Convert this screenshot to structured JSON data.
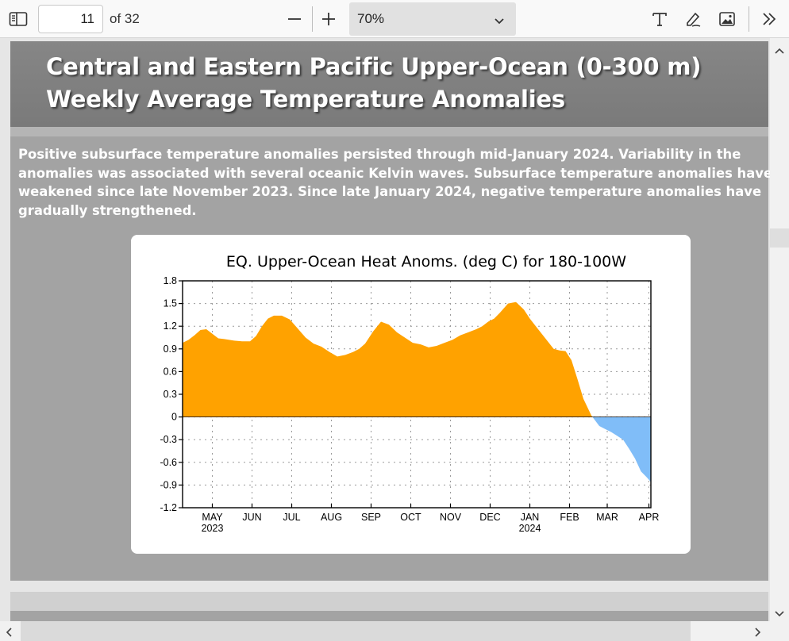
{
  "toolbar": {
    "page_current": "11",
    "page_total_label": "of 32",
    "zoom_value": "70%",
    "icons": [
      "sidebar-toggle-icon",
      "zoom-out-icon",
      "zoom-in-icon",
      "chevron-down-icon",
      "text-icon",
      "draw-icon",
      "image-icon",
      "more-tools-icon"
    ]
  },
  "slide": {
    "title_line1": "Central and Eastern Pacific Upper-Ocean (0-300 m)",
    "title_line2": "Weekly Average Temperature Anomalies",
    "description_lines": [
      "Positive subsurface temperature anomalies persisted through mid-January 2024.  Variability in the",
      "anomalies was associated with several oceanic Kelvin waves.  Subsurface temperature anomalies have",
      "weakened since late November 2023.  Since late January 2024,  negative temperature anomalies have",
      "gradually strengthened."
    ]
  },
  "colors": {
    "positive_fill": "#ffa200",
    "negative_fill": "#80bdf8",
    "slide_bg": "#a3a3a3",
    "title_band": "#7f7f7f"
  },
  "chart_data": {
    "type": "area",
    "title": "EQ. Upper-Ocean Heat Anoms. (deg C) for 180-100W",
    "xlabel": "",
    "ylabel": "",
    "ylim": [
      -1.2,
      1.8
    ],
    "yticks": [
      "1.8",
      "1.5",
      "1.2",
      "0.9",
      "0.6",
      "0.3",
      "0",
      "-0.3",
      "-0.6",
      "-0.9",
      "-1.2"
    ],
    "x_tick_labels": [
      {
        "label": "MAY",
        "sub": "2023",
        "x": 0.75
      },
      {
        "label": "JUN",
        "sub": "",
        "x": 1.75
      },
      {
        "label": "JUL",
        "sub": "",
        "x": 2.75
      },
      {
        "label": "AUG",
        "sub": "",
        "x": 3.75
      },
      {
        "label": "SEP",
        "sub": "",
        "x": 4.75
      },
      {
        "label": "OCT",
        "sub": "",
        "x": 5.75
      },
      {
        "label": "NOV",
        "sub": "",
        "x": 6.75
      },
      {
        "label": "DEC",
        "sub": "",
        "x": 7.75
      },
      {
        "label": "JAN",
        "sub": "2024",
        "x": 8.75
      },
      {
        "label": "FEB",
        "sub": "",
        "x": 9.75
      },
      {
        "label": "MAR",
        "sub": "",
        "x": 10.7
      },
      {
        "label": "APR",
        "sub": "",
        "x": 11.75
      }
    ],
    "xlim": [
      0,
      11.8
    ],
    "grid": true,
    "x_unit": "months since start of Apr 2023",
    "series": [
      {
        "x": [
          0.0,
          0.15,
          0.3,
          0.45,
          0.6,
          0.75,
          0.9,
          1.05,
          1.3,
          1.5,
          1.7,
          1.85,
          2.0,
          2.15,
          2.3,
          2.5,
          2.7,
          2.9,
          3.1,
          3.3,
          3.5,
          3.7,
          3.9,
          4.1,
          4.3,
          4.45,
          4.6,
          4.8,
          5.0,
          5.2,
          5.4,
          5.6,
          5.8,
          6.0,
          6.2,
          6.4,
          6.6,
          6.8,
          7.0,
          7.2,
          7.4,
          7.55,
          7.7,
          7.85,
          8.0,
          8.2,
          8.4,
          8.6,
          8.75,
          8.9,
          9.05,
          9.2,
          9.35,
          9.5,
          9.65,
          9.8,
          9.95,
          10.1,
          10.3,
          10.5,
          10.65,
          10.8,
          10.95,
          11.1,
          11.25,
          11.4,
          11.55,
          11.7,
          11.8
        ],
        "y": [
          0.98,
          1.02,
          1.08,
          1.15,
          1.16,
          1.1,
          1.04,
          1.03,
          1.01,
          1.0,
          1.0,
          1.07,
          1.2,
          1.3,
          1.34,
          1.34,
          1.29,
          1.17,
          1.05,
          0.97,
          0.93,
          0.86,
          0.8,
          0.82,
          0.86,
          0.9,
          0.97,
          1.13,
          1.26,
          1.22,
          1.12,
          1.05,
          0.98,
          0.96,
          0.92,
          0.94,
          0.98,
          1.02,
          1.08,
          1.12,
          1.16,
          1.2,
          1.26,
          1.3,
          1.38,
          1.5,
          1.52,
          1.42,
          1.3,
          1.2,
          1.1,
          1.0,
          0.9,
          0.88,
          0.87,
          0.75,
          0.5,
          0.24,
          0.02,
          -0.12,
          -0.16,
          -0.2,
          -0.25,
          -0.3,
          -0.42,
          -0.55,
          -0.72,
          -0.8,
          -0.86
        ]
      }
    ]
  }
}
